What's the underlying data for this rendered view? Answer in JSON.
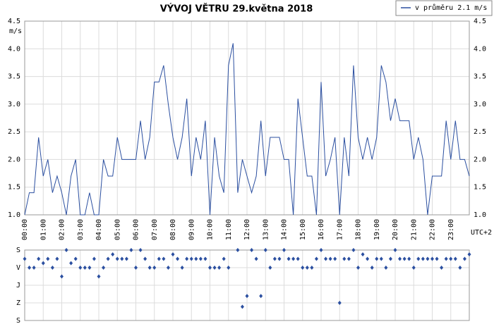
{
  "chart_data": [
    {
      "type": "line",
      "title": "VÝVOJ VĚTRU  29.května 2018",
      "y_label": "m/s",
      "x_label": "UTC+2",
      "grid": true,
      "x": [
        0,
        0.25,
        0.5,
        0.75,
        1,
        1.25,
        1.5,
        1.75,
        2,
        2.25,
        2.5,
        2.75,
        3,
        3.25,
        3.5,
        3.75,
        4,
        4.25,
        4.5,
        4.75,
        5,
        5.25,
        5.5,
        5.75,
        6,
        6.25,
        6.5,
        6.75,
        7,
        7.25,
        7.5,
        7.75,
        8,
        8.25,
        8.5,
        8.75,
        9,
        9.25,
        9.5,
        9.75,
        10,
        10.25,
        10.5,
        10.75,
        11,
        11.25,
        11.5,
        11.75,
        12,
        12.25,
        12.5,
        12.75,
        13,
        13.25,
        13.5,
        13.75,
        14,
        14.25,
        14.5,
        14.75,
        15,
        15.25,
        15.5,
        15.75,
        16,
        16.25,
        16.5,
        16.75,
        17,
        17.25,
        17.5,
        17.75,
        18,
        18.25,
        18.5,
        18.75,
        19,
        19.25,
        19.5,
        19.75,
        20,
        20.25,
        20.5,
        20.75,
        21,
        21.25,
        21.5,
        21.75,
        22,
        22.25,
        22.5,
        22.75,
        23,
        23.25,
        23.5,
        23.75,
        24
      ],
      "series": [
        {
          "name": "v průměru 2.1 m/s",
          "color": "#2b4fa0",
          "values": [
            1.0,
            1.4,
            1.4,
            2.4,
            1.7,
            2.0,
            1.4,
            1.7,
            1.4,
            1.0,
            1.7,
            2.0,
            1.0,
            1.0,
            1.4,
            1.0,
            1.0,
            2.0,
            1.7,
            1.7,
            2.4,
            2.0,
            2.0,
            2.0,
            2.0,
            2.7,
            2.0,
            2.4,
            3.4,
            3.4,
            3.7,
            3.0,
            2.4,
            2.0,
            2.4,
            3.1,
            1.7,
            2.4,
            2.0,
            2.7,
            1.0,
            2.4,
            1.7,
            1.4,
            3.7,
            4.1,
            1.4,
            2.0,
            1.7,
            1.4,
            1.7,
            2.7,
            1.7,
            2.4,
            2.4,
            2.4,
            2.0,
            2.0,
            1.0,
            3.1,
            2.4,
            1.7,
            1.7,
            1.0,
            3.4,
            1.7,
            2.0,
            2.4,
            1.0,
            2.4,
            1.7,
            3.7,
            2.4,
            2.0,
            2.4,
            2.0,
            2.4,
            3.7,
            3.4,
            2.7,
            3.1,
            2.7,
            2.7,
            2.7,
            2.0,
            2.4,
            2.0,
            1.0,
            1.7,
            1.7,
            1.7,
            2.7,
            2.0,
            2.7,
            2.0,
            2.0,
            1.7
          ]
        }
      ],
      "xlim": [
        0,
        24
      ],
      "xticks": [
        {
          "value": 0,
          "label": "00:00"
        },
        {
          "value": 1,
          "label": "01:00"
        },
        {
          "value": 2,
          "label": "02:00"
        },
        {
          "value": 3,
          "label": "03:00"
        },
        {
          "value": 4,
          "label": "04:00"
        },
        {
          "value": 5,
          "label": "05:00"
        },
        {
          "value": 6,
          "label": "06:00"
        },
        {
          "value": 7,
          "label": "07:00"
        },
        {
          "value": 8,
          "label": "08:00"
        },
        {
          "value": 9,
          "label": "09:00"
        },
        {
          "value": 10,
          "label": "10:00"
        },
        {
          "value": 11,
          "label": "11:00"
        },
        {
          "value": 12,
          "label": "12:00"
        },
        {
          "value": 13,
          "label": "13:00"
        },
        {
          "value": 14,
          "label": "14:00"
        },
        {
          "value": 15,
          "label": "15:00"
        },
        {
          "value": 16,
          "label": "16:00"
        },
        {
          "value": 17,
          "label": "17:00"
        },
        {
          "value": 18,
          "label": "18:00"
        },
        {
          "value": 19,
          "label": "19:00"
        },
        {
          "value": 20,
          "label": "20:00"
        },
        {
          "value": 21,
          "label": "21:00"
        },
        {
          "value": 22,
          "label": "22:00"
        },
        {
          "value": 23,
          "label": "23:00"
        }
      ],
      "ylim": [
        1.0,
        4.5
      ],
      "yticks": [
        {
          "value": 1,
          "label": "1.0"
        },
        1.5,
        {
          "value": 2,
          "label": "2.0"
        },
        2.5,
        {
          "value": 3,
          "label": "3.0"
        },
        3.5,
        {
          "value": 4,
          "label": "4.0"
        },
        4.5
      ],
      "legend": "top-right"
    },
    {
      "type": "scatter",
      "grid": true,
      "y_inverted": true,
      "x": [
        0,
        0.25,
        0.5,
        0.75,
        1,
        1.25,
        1.5,
        1.75,
        2,
        2.25,
        2.5,
        2.75,
        3,
        3.25,
        3.5,
        3.75,
        4,
        4.25,
        4.5,
        4.75,
        5,
        5.25,
        5.5,
        5.75,
        6,
        6.25,
        6.5,
        6.75,
        7,
        7.25,
        7.5,
        7.75,
        8,
        8.25,
        8.5,
        8.75,
        9,
        9.25,
        9.5,
        9.75,
        10,
        10.25,
        10.5,
        10.75,
        11,
        11.25,
        11.5,
        11.75,
        12,
        12.25,
        12.5,
        12.75,
        13,
        13.25,
        13.5,
        13.75,
        14,
        14.25,
        14.5,
        14.75,
        15,
        15.25,
        15.5,
        15.75,
        16,
        16.25,
        16.5,
        16.75,
        17,
        17.25,
        17.5,
        17.75,
        18,
        18.25,
        18.5,
        18.75,
        19,
        19.25,
        19.5,
        19.75,
        20,
        20.25,
        20.5,
        20.75,
        21,
        21.25,
        21.5,
        21.75,
        22,
        22.25,
        22.5,
        22.75,
        23,
        23.25,
        23.5,
        23.75,
        24
      ],
      "series": [
        {
          "color": "#2b4fa0",
          "values": [
            45,
            90,
            90,
            45,
            67,
            45,
            90,
            45,
            135,
            0,
            67,
            45,
            90,
            90,
            90,
            45,
            135,
            90,
            45,
            22,
            45,
            45,
            45,
            0,
            90,
            0,
            45,
            90,
            90,
            45,
            45,
            90,
            22,
            45,
            90,
            45,
            45,
            45,
            45,
            45,
            90,
            90,
            90,
            45,
            90,
            null,
            0,
            290,
            235,
            0,
            45,
            235,
            0,
            90,
            45,
            45,
            0,
            45,
            45,
            45,
            90,
            90,
            90,
            45,
            0,
            45,
            45,
            45,
            270,
            45,
            45,
            0,
            90,
            22,
            45,
            90,
            45,
            45,
            90,
            45,
            0,
            45,
            45,
            45,
            90,
            45,
            45,
            45,
            45,
            45,
            90,
            45,
            45,
            45,
            90,
            45,
            22
          ]
        }
      ],
      "xlim": [
        0,
        24
      ],
      "ylim": [
        0,
        360
      ],
      "yticks": [
        {
          "value": 0,
          "label": "S"
        },
        {
          "value": 90,
          "label": "V"
        },
        {
          "value": 180,
          "label": "J"
        },
        {
          "value": 270,
          "label": "Z"
        },
        {
          "value": 360,
          "label": "S"
        }
      ]
    }
  ]
}
